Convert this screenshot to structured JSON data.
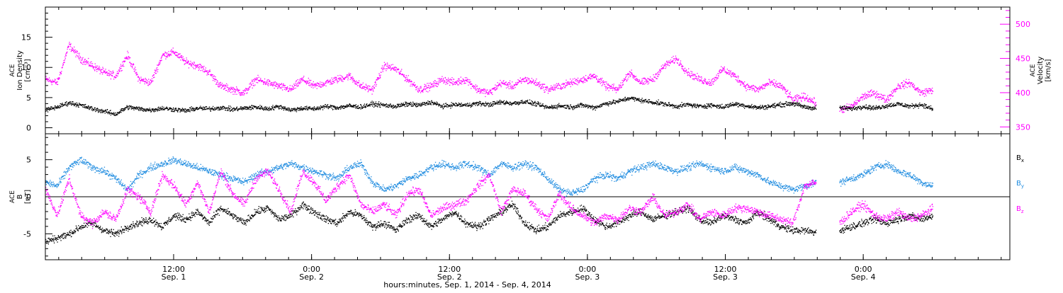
{
  "chart_data": [
    {
      "type": "scatter",
      "panel": "top",
      "ylabel_left": [
        "ACE",
        "Ion Density",
        "[cm⁻³]"
      ],
      "ylabel_right": [
        "ACE",
        "Velocity",
        "[km/s]"
      ],
      "y_left": {
        "lim": [
          -1,
          20
        ],
        "ticks": [
          0,
          5,
          10,
          15
        ]
      },
      "y_right": {
        "lim": [
          340,
          525
        ],
        "ticks": [
          350,
          400,
          450,
          500
        ]
      },
      "series": [
        {
          "axis": "left",
          "color": "#000000",
          "values": [
            3.0,
            3.5,
            4.2,
            3.8,
            3.2,
            2.8,
            2.3,
            3.5,
            3.2,
            3.0,
            3.3,
            3.1,
            2.9,
            3.3,
            3.2,
            3.4,
            3.1,
            3.3,
            3.5,
            3.2,
            3.6,
            3.0,
            3.3,
            3.2,
            3.6,
            3.4,
            3.7,
            3.5,
            4.0,
            3.8,
            3.6,
            4.0,
            3.8,
            4.3,
            3.6,
            3.9,
            3.8,
            4.1,
            3.9,
            4.3,
            4.1,
            4.4,
            4.0,
            3.4,
            3.7,
            3.5,
            3.8,
            3.4,
            4.1,
            4.4,
            5.0,
            4.6,
            4.3,
            4.0,
            3.6,
            3.9,
            3.6,
            3.8,
            3.5,
            4.0,
            3.7,
            3.4,
            3.6,
            3.9,
            4.1,
            3.5,
            3.3,
            null,
            3.4,
            3.2,
            3.6,
            3.3,
            3.7,
            4.0,
            3.6,
            3.9,
            3.1
          ]
        },
        {
          "axis": "right",
          "color": "#ff00ff",
          "values": [
            420,
            415,
            470,
            450,
            440,
            430,
            425,
            455,
            420,
            415,
            455,
            460,
            445,
            440,
            430,
            410,
            405,
            400,
            420,
            415,
            410,
            405,
            420,
            410,
            415,
            420,
            425,
            410,
            405,
            440,
            435,
            420,
            405,
            410,
            420,
            415,
            420,
            405,
            400,
            415,
            410,
            420,
            415,
            405,
            410,
            415,
            420,
            425,
            410,
            405,
            430,
            415,
            420,
            440,
            450,
            430,
            420,
            415,
            435,
            425,
            410,
            405,
            415,
            410,
            390,
            395,
            385,
            null,
            375,
            380,
            395,
            400,
            390,
            410,
            415,
            400,
            405
          ]
        }
      ]
    },
    {
      "type": "scatter",
      "panel": "bottom",
      "ylabel": [
        "ACE",
        "B",
        "[nT]"
      ],
      "y": {
        "lim": [
          -8.5,
          8.5
        ],
        "ticks": [
          -5,
          0,
          5
        ]
      },
      "series": [
        {
          "name": "Bx",
          "color": "#000000",
          "values": [
            -6.0,
            -5.5,
            -5.0,
            -4.0,
            -3.5,
            -4.5,
            -5.0,
            -4.0,
            -3.5,
            -3.0,
            -4.0,
            -2.5,
            -3.0,
            -2.0,
            -3.5,
            -1.5,
            -2.5,
            -3.5,
            -2.0,
            -1.5,
            -3.0,
            -2.5,
            -1.0,
            -2.0,
            -3.0,
            -3.5,
            -2.0,
            -2.5,
            -4.0,
            -3.5,
            -4.5,
            -3.0,
            -2.5,
            -4.0,
            -3.0,
            -2.0,
            -3.5,
            -4.0,
            -3.0,
            -2.0,
            -1.0,
            -3.5,
            -4.5,
            -4.0,
            -2.5,
            -2.0,
            -1.5,
            -3.0,
            -4.0,
            -3.5,
            -2.5,
            -2.0,
            -3.0,
            -2.5,
            -2.0,
            -1.5,
            -3.0,
            -3.5,
            -2.5,
            -3.0,
            -3.5,
            -2.0,
            -3.0,
            -4.0,
            -4.5,
            -4.5,
            -4.8,
            null,
            -4.5,
            -4.0,
            -3.5,
            -3.0,
            -3.5,
            -3.0,
            -2.5,
            -3.0,
            -2.5
          ]
        },
        {
          "name": "By",
          "color": "#1f8ce0",
          "values": [
            2.0,
            1.5,
            4.0,
            5.0,
            4.0,
            3.5,
            2.5,
            1.0,
            3.0,
            4.0,
            4.5,
            5.0,
            4.5,
            4.0,
            3.5,
            3.0,
            2.5,
            2.0,
            3.0,
            3.5,
            4.0,
            4.5,
            4.0,
            3.5,
            3.0,
            2.5,
            4.0,
            4.5,
            2.0,
            1.0,
            1.5,
            2.5,
            3.0,
            4.0,
            4.5,
            4.0,
            4.5,
            4.0,
            3.0,
            4.5,
            4.0,
            4.5,
            4.0,
            2.5,
            1.0,
            0.5,
            1.0,
            2.5,
            3.0,
            2.5,
            3.5,
            4.0,
            4.5,
            4.0,
            3.5,
            4.0,
            4.5,
            4.0,
            3.5,
            4.0,
            3.5,
            3.0,
            2.0,
            1.5,
            1.0,
            1.5,
            2.0,
            null,
            2.0,
            2.5,
            3.0,
            4.0,
            4.5,
            3.5,
            3.0,
            2.0,
            1.5
          ]
        },
        {
          "name": "Bz",
          "color": "#ff00ff",
          "values": [
            1.0,
            -2.5,
            2.5,
            -2.5,
            -3.5,
            -2.0,
            -3.0,
            1.0,
            0.0,
            -2.0,
            3.0,
            1.5,
            -1.0,
            2.0,
            -2.0,
            3.5,
            0.5,
            -1.0,
            2.5,
            3.5,
            1.0,
            -2.0,
            3.5,
            2.0,
            -0.5,
            1.5,
            3.0,
            -1.0,
            -2.0,
            -1.0,
            -2.5,
            0.5,
            1.0,
            -2.5,
            -1.5,
            -1.0,
            -0.5,
            1.5,
            3.0,
            -2.0,
            1.0,
            0.5,
            -1.5,
            -3.0,
            0.5,
            -1.5,
            -2.5,
            -3.5,
            -2.5,
            -3.0,
            -1.5,
            -2.0,
            0.0,
            -2.5,
            -2.0,
            -1.0,
            -3.0,
            -2.0,
            -2.5,
            -1.5,
            -1.5,
            -2.0,
            -2.5,
            -3.0,
            -3.5,
            1.5,
            2.0,
            null,
            -3.5,
            -2.0,
            -1.0,
            -2.5,
            -3.0,
            -2.0,
            -3.0,
            -2.5,
            -1.5
          ]
        }
      ]
    }
  ],
  "x_axis": {
    "title": "hours:minutes, Sep.  1, 2014 - Sep.  4, 2014",
    "lim": [
      0,
      100
    ],
    "data_end": 92,
    "ticks": [
      {
        "x": 13.3,
        "time": "12:00",
        "date": "Sep. 1"
      },
      {
        "x": 27.6,
        "time": "0:00",
        "date": "Sep. 2"
      },
      {
        "x": 41.9,
        "time": "12:00",
        "date": "Sep. 2"
      },
      {
        "x": 56.2,
        "time": "0:00",
        "date": "Sep. 3"
      },
      {
        "x": 70.5,
        "time": "12:00",
        "date": "Sep. 3"
      },
      {
        "x": 84.8,
        "time": "0:00",
        "date": "Sep. 4"
      }
    ]
  },
  "legend": [
    {
      "label": "B",
      "sub": "x",
      "color": "#000000"
    },
    {
      "label": "B",
      "sub": "y",
      "color": "#1f8ce0"
    },
    {
      "label": "B",
      "sub": "z",
      "color": "#ff00ff"
    }
  ],
  "colors": {
    "axis": "#000000",
    "velocity_axis": "#ff00ff"
  }
}
